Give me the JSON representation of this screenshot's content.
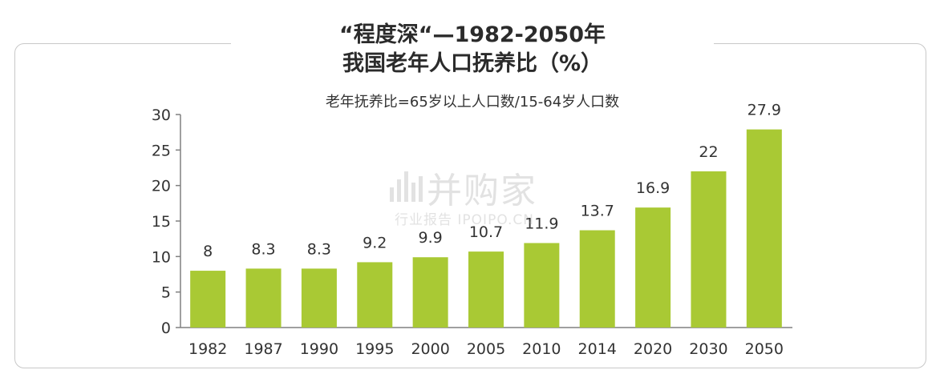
{
  "title_line1": "“程度深“—1982-2050年",
  "title_line2": "我国老年人口抚养比（%）",
  "subtitle": "老年抚养比=65岁以上人口数/15-64岁人口数",
  "watermark": {
    "main": "并购家",
    "sub": "行业报告 IPOIPO.CN"
  },
  "colors": {
    "bar": "#a9c934",
    "axis": "#808080",
    "text": "#333333"
  },
  "chart_data": {
    "type": "bar",
    "categories": [
      "1982",
      "1987",
      "1990",
      "1995",
      "2000",
      "2005",
      "2010",
      "2014",
      "2020",
      "2030",
      "2050"
    ],
    "values": [
      8,
      8.3,
      8.3,
      9.2,
      9.9,
      10.7,
      11.9,
      13.7,
      16.9,
      22,
      27.9
    ],
    "value_labels": [
      "8",
      "8.3",
      "8.3",
      "9.2",
      "9.9",
      "10.7",
      "11.9",
      "13.7",
      "16.9",
      "22",
      "27.9"
    ],
    "yticks": [
      "0",
      "5",
      "10",
      "15",
      "20",
      "25",
      "30"
    ],
    "ylim": [
      0,
      30
    ],
    "grid": false,
    "legend": "none"
  }
}
